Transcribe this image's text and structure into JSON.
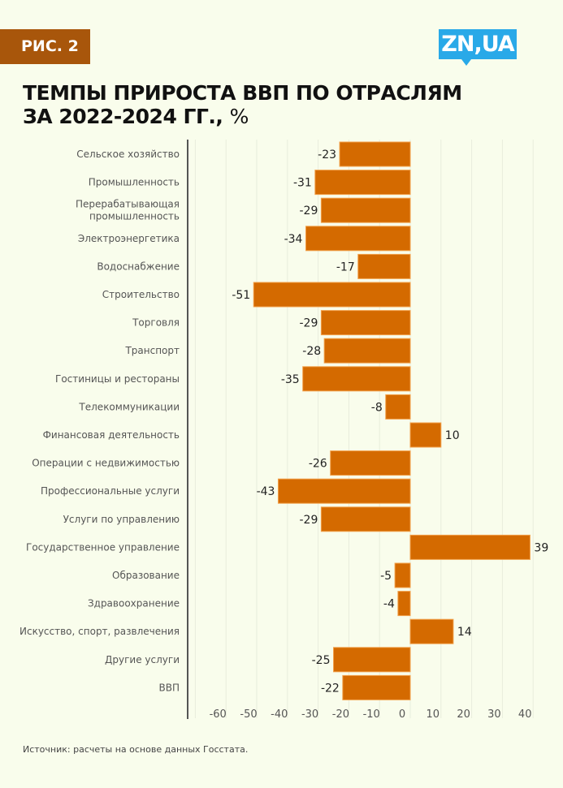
{
  "badge": "РИС. 2",
  "logo": "ZN,UA",
  "title_line1": "ТЕМПЫ ПРИРОСТА ВВП ПО ОТРАСЛЯМ",
  "title_line2": "ЗА 2022-2024 ГГ.,",
  "title_unit": "%",
  "source": "Источник: расчеты на основе данных Госстата.",
  "colors": {
    "bar": "#d46a00",
    "badge": "#a8560b",
    "logo": "#29a9e8",
    "background": "#f9fdec"
  },
  "chart_data": {
    "type": "bar",
    "orientation": "horizontal",
    "categories": [
      "Сельское хозяйство",
      "Промышленность",
      "Перерабатывающая|промышленность",
      "Электроэнергетика",
      "Водоснабжение",
      "Строительство",
      "Торговля",
      "Транспорт",
      "Гостиницы и рестораны",
      "Телекоммуникации",
      "Финансовая деятельность",
      "Операции с недвижимостью",
      "Профессиональные услуги",
      "Услуги по управлению",
      "Государственное управление",
      "Образование",
      "Здравоохранение",
      "Искусство, спорт, развлечения",
      "Другие услуги",
      "ВВП"
    ],
    "values": [
      -23,
      -31,
      -29,
      -34,
      -17,
      -51,
      -29,
      -28,
      -35,
      -8,
      10,
      -26,
      -43,
      -29,
      39,
      -5,
      -4,
      14,
      -25,
      -22
    ],
    "xticks": [
      -60,
      -50,
      -40,
      -30,
      -20,
      -10,
      0,
      10,
      20,
      30,
      40
    ],
    "xlim": [
      -70,
      40
    ],
    "grid": true
  }
}
